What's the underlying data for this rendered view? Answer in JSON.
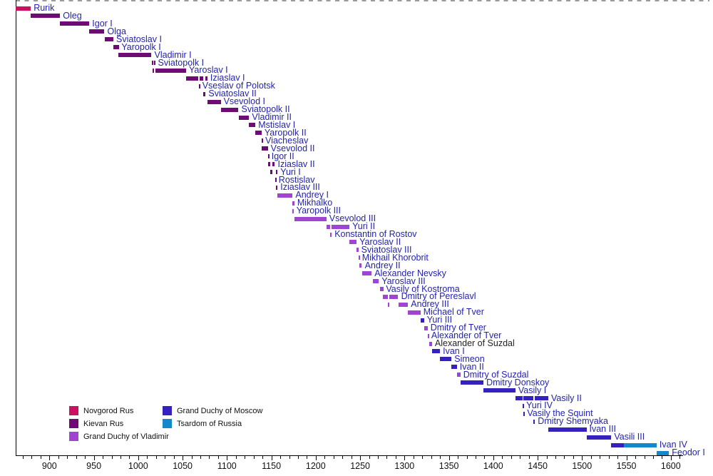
{
  "colors": {
    "novgorod": "#CC1060",
    "kievan": "#6E0B74",
    "vladimir": "#9F44D3",
    "moscow": "#3521BE",
    "tsardom": "#1488CA",
    "ruler_label_blue": "#2323AE",
    "ruler_label_black": "#222222",
    "axis_text": "#111111",
    "top_dash_gray": "#9A9A9A"
  },
  "legend": {
    "items": [
      {
        "label": "Novgorod Rus",
        "polity": "novgorod",
        "column": 0,
        "row": 0
      },
      {
        "label": "Kievan Rus",
        "polity": "kievan",
        "column": 0,
        "row": 1
      },
      {
        "label": "Grand Duchy of Vladimir",
        "polity": "vladimir",
        "column": 0,
        "row": 2
      },
      {
        "label": "Grand Duchy of Moscow",
        "polity": "moscow",
        "column": 1,
        "row": 0
      },
      {
        "label": "Tsardom of Russia",
        "polity": "tsardom",
        "column": 1,
        "row": 1
      }
    ]
  },
  "chart_data": {
    "type": "timeline",
    "title": "",
    "xlabel": "",
    "ylabel": "",
    "x_domain": [
      862,
      1640
    ],
    "x_ticks": [
      900,
      950,
      1000,
      1050,
      1100,
      1150,
      1200,
      1250,
      1300,
      1350,
      1400,
      1450,
      1500,
      1550,
      1600
    ],
    "minor_tick_step": 10,
    "minor_tick_range": [
      870,
      1610
    ],
    "grid": false,
    "legend_position": "bottom-left",
    "rulers": [
      {
        "name": "Rurik",
        "segments": [
          {
            "from": 862,
            "to": 879,
            "polity": "novgorod"
          }
        ]
      },
      {
        "name": "Oleg",
        "segments": [
          {
            "from": 879,
            "to": 912,
            "polity": "kievan"
          }
        ]
      },
      {
        "name": "Igor I",
        "segments": [
          {
            "from": 912,
            "to": 945,
            "polity": "kievan"
          }
        ]
      },
      {
        "name": "Olga",
        "segments": [
          {
            "from": 945,
            "to": 962,
            "polity": "kievan"
          }
        ]
      },
      {
        "name": "Sviatoslav I",
        "segments": [
          {
            "from": 962,
            "to": 972,
            "polity": "kievan"
          }
        ]
      },
      {
        "name": "Yaropolk I",
        "segments": [
          {
            "from": 972,
            "to": 978,
            "polity": "kievan"
          }
        ]
      },
      {
        "name": "Vladimir I",
        "segments": [
          {
            "from": 978,
            "to": 1015,
            "polity": "kievan"
          }
        ]
      },
      {
        "name": "Sviatopolk I",
        "segments": [
          {
            "from": 1015,
            "to": 1016,
            "polity": "kievan"
          },
          {
            "from": 1018,
            "to": 1019,
            "polity": "kievan"
          }
        ]
      },
      {
        "name": "Yaroslav I",
        "segments": [
          {
            "from": 1016,
            "to": 1018,
            "polity": "kievan"
          },
          {
            "from": 1019,
            "to": 1054,
            "polity": "kievan"
          }
        ]
      },
      {
        "name": "Iziaslav I",
        "segments": [
          {
            "from": 1054,
            "to": 1068,
            "polity": "kievan"
          },
          {
            "from": 1069,
            "to": 1073,
            "polity": "kievan"
          },
          {
            "from": 1076,
            "to": 1078,
            "polity": "kievan"
          }
        ]
      },
      {
        "name": "Vseslav of Polotsk",
        "segments": [
          {
            "from": 1068,
            "to": 1069,
            "polity": "kievan"
          }
        ]
      },
      {
        "name": "Sviatoslav II",
        "segments": [
          {
            "from": 1073,
            "to": 1076,
            "polity": "kievan"
          }
        ]
      },
      {
        "name": "Vsevolod I",
        "segments": [
          {
            "from": 1078,
            "to": 1093,
            "polity": "kievan"
          }
        ]
      },
      {
        "name": "Sviatopolk II",
        "segments": [
          {
            "from": 1093,
            "to": 1113,
            "polity": "kievan"
          }
        ]
      },
      {
        "name": "Vladimir II",
        "segments": [
          {
            "from": 1113,
            "to": 1125,
            "polity": "kievan"
          }
        ]
      },
      {
        "name": "Mstislav I",
        "segments": [
          {
            "from": 1125,
            "to": 1132,
            "polity": "kievan"
          }
        ]
      },
      {
        "name": "Yaropolk II",
        "segments": [
          {
            "from": 1132,
            "to": 1139,
            "polity": "kievan"
          }
        ]
      },
      {
        "name": "Viacheslav",
        "segments": [
          {
            "from": 1139,
            "to": 1140,
            "polity": "kievan"
          }
        ]
      },
      {
        "name": "Vsevolod II",
        "segments": [
          {
            "from": 1139,
            "to": 1146,
            "polity": "kievan"
          }
        ]
      },
      {
        "name": "Igor II",
        "segments": [
          {
            "from": 1146,
            "to": 1147,
            "polity": "kievan"
          }
        ]
      },
      {
        "name": "Iziaslav II",
        "segments": [
          {
            "from": 1146,
            "to": 1149,
            "polity": "kievan"
          },
          {
            "from": 1151,
            "to": 1154,
            "polity": "kievan"
          }
        ]
      },
      {
        "name": "Yuri I",
        "segments": [
          {
            "from": 1149,
            "to": 1151,
            "polity": "kievan"
          },
          {
            "from": 1155,
            "to": 1157,
            "polity": "kievan"
          }
        ]
      },
      {
        "name": "Rostislav",
        "segments": [
          {
            "from": 1154,
            "to": 1155,
            "polity": "kievan"
          }
        ]
      },
      {
        "name": "Iziaslav III",
        "segments": [
          {
            "from": 1155,
            "to": 1157,
            "polity": "kievan"
          }
        ]
      },
      {
        "name": "Andrey I",
        "segments": [
          {
            "from": 1157,
            "to": 1174,
            "polity": "vladimir"
          }
        ]
      },
      {
        "name": "Mikhalko",
        "segments": [
          {
            "from": 1174,
            "to": 1176,
            "polity": "vladimir"
          }
        ]
      },
      {
        "name": "Yaropolk III",
        "segments": [
          {
            "from": 1174,
            "to": 1175,
            "polity": "vladimir"
          }
        ]
      },
      {
        "name": "Vsevolod III",
        "segments": [
          {
            "from": 1176,
            "to": 1212,
            "polity": "vladimir"
          }
        ]
      },
      {
        "name": "Yuri II",
        "segments": [
          {
            "from": 1212,
            "to": 1216,
            "polity": "vladimir"
          },
          {
            "from": 1218,
            "to": 1238,
            "polity": "vladimir"
          }
        ]
      },
      {
        "name": "Konstantin of Rostov",
        "segments": [
          {
            "from": 1216,
            "to": 1218,
            "polity": "vladimir"
          }
        ]
      },
      {
        "name": "Yaroslav II",
        "segments": [
          {
            "from": 1238,
            "to": 1246,
            "polity": "vladimir"
          }
        ]
      },
      {
        "name": "Sviatoslav III",
        "segments": [
          {
            "from": 1246,
            "to": 1248,
            "polity": "vladimir"
          }
        ]
      },
      {
        "name": "Mikhail Khorobrit",
        "segments": [
          {
            "from": 1248,
            "to": 1249,
            "polity": "vladimir"
          }
        ]
      },
      {
        "name": "Andrey II",
        "segments": [
          {
            "from": 1249,
            "to": 1252,
            "polity": "vladimir"
          }
        ]
      },
      {
        "name": "Alexander Nevsky",
        "segments": [
          {
            "from": 1252,
            "to": 1263,
            "polity": "vladimir"
          }
        ]
      },
      {
        "name": "Yaroslav III",
        "segments": [
          {
            "from": 1264,
            "to": 1271,
            "polity": "vladimir"
          }
        ]
      },
      {
        "name": "Vasily of Kostroma",
        "segments": [
          {
            "from": 1272,
            "to": 1276,
            "polity": "vladimir"
          }
        ]
      },
      {
        "name": "Dmitry of Pereslavl",
        "segments": [
          {
            "from": 1276,
            "to": 1281,
            "polity": "vladimir"
          },
          {
            "from": 1283,
            "to": 1293,
            "polity": "vladimir"
          }
        ]
      },
      {
        "name": "Andrey III",
        "segments": [
          {
            "from": 1281,
            "to": 1283,
            "polity": "vladimir"
          },
          {
            "from": 1293,
            "to": 1304,
            "polity": "vladimir"
          }
        ]
      },
      {
        "name": "Michael of Tver",
        "segments": [
          {
            "from": 1304,
            "to": 1318,
            "polity": "vladimir"
          }
        ]
      },
      {
        "name": "Yuri III",
        "segments": [
          {
            "from": 1318,
            "to": 1322,
            "polity": "moscow"
          }
        ]
      },
      {
        "name": "Dmitry of Tver",
        "segments": [
          {
            "from": 1322,
            "to": 1326,
            "polity": "vladimir"
          }
        ]
      },
      {
        "name": "Alexander of Tver",
        "segments": [
          {
            "from": 1326,
            "to": 1327,
            "polity": "vladimir"
          }
        ]
      },
      {
        "name": "Alexander of Suzdal",
        "segments": [
          {
            "from": 1328,
            "to": 1331,
            "polity": "vladimir"
          }
        ],
        "label_color": "black"
      },
      {
        "name": "Ivan I",
        "segments": [
          {
            "from": 1331,
            "to": 1340,
            "polity": "moscow"
          }
        ]
      },
      {
        "name": "Simeon",
        "segments": [
          {
            "from": 1340,
            "to": 1353,
            "polity": "moscow"
          }
        ]
      },
      {
        "name": "Ivan II",
        "segments": [
          {
            "from": 1353,
            "to": 1359,
            "polity": "moscow"
          }
        ]
      },
      {
        "name": "Dmitry of Suzdal",
        "segments": [
          {
            "from": 1359,
            "to": 1363,
            "polity": "vladimir"
          }
        ]
      },
      {
        "name": "Dmitry Donskoy",
        "segments": [
          {
            "from": 1363,
            "to": 1389,
            "polity": "moscow"
          }
        ]
      },
      {
        "name": "Vasily I",
        "segments": [
          {
            "from": 1389,
            "to": 1425,
            "polity": "moscow"
          }
        ]
      },
      {
        "name": "Vasily II",
        "segments": [
          {
            "from": 1425,
            "to": 1433,
            "polity": "moscow"
          },
          {
            "from": 1434,
            "to": 1445,
            "polity": "moscow"
          },
          {
            "from": 1447,
            "to": 1462,
            "polity": "moscow"
          }
        ]
      },
      {
        "name": "Yuri IV",
        "segments": [
          {
            "from": 1433,
            "to": 1434,
            "polity": "moscow"
          }
        ]
      },
      {
        "name": "Vasily the Squint",
        "segments": [
          {
            "from": 1434,
            "to": 1435,
            "polity": "moscow"
          }
        ]
      },
      {
        "name": "Dmitry Shemyaka",
        "segments": [
          {
            "from": 1445,
            "to": 1447,
            "polity": "moscow"
          }
        ]
      },
      {
        "name": "Ivan III",
        "segments": [
          {
            "from": 1462,
            "to": 1505,
            "polity": "moscow"
          }
        ]
      },
      {
        "name": "Vasili III",
        "segments": [
          {
            "from": 1505,
            "to": 1533,
            "polity": "moscow"
          }
        ]
      },
      {
        "name": "Ivan IV",
        "segments": [
          {
            "from": 1533,
            "to": 1547,
            "polity": "moscow"
          },
          {
            "from": 1547,
            "to": 1584,
            "polity": "tsardom"
          }
        ]
      },
      {
        "name": "Feodor I",
        "segments": [
          {
            "from": 1584,
            "to": 1598,
            "polity": "tsardom"
          }
        ]
      }
    ]
  }
}
